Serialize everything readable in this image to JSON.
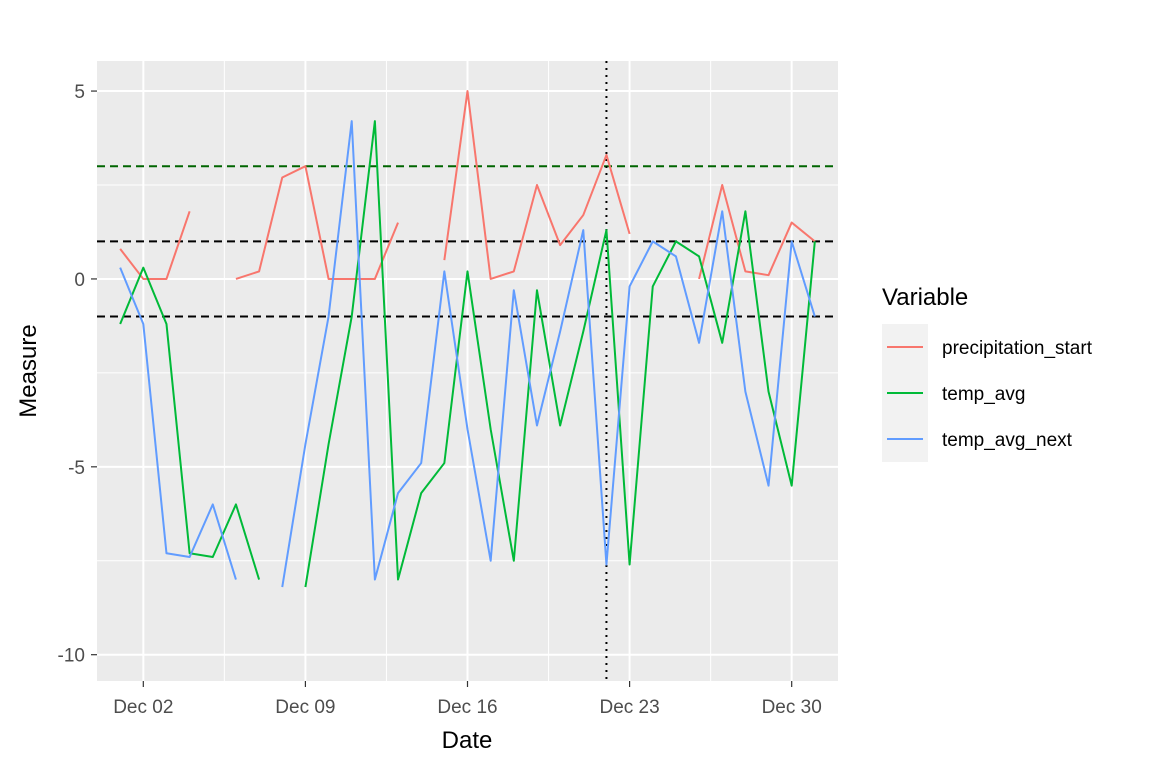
{
  "chart_data": {
    "type": "line",
    "title": "",
    "xlabel": "Date",
    "ylabel": "Measure",
    "xlim": [
      "2023-11-30",
      "2024-01-01"
    ],
    "ylim": [
      -10.7,
      5.8
    ],
    "x_ticks": [
      {
        "date": "2023-12-02",
        "label": "Dec 02"
      },
      {
        "date": "2023-12-09",
        "label": "Dec 09"
      },
      {
        "date": "2023-12-16",
        "label": "Dec 16"
      },
      {
        "date": "2023-12-23",
        "label": "Dec 23"
      },
      {
        "date": "2023-12-30",
        "label": "Dec 30"
      }
    ],
    "y_ticks": [
      {
        "value": 5,
        "label": "5"
      },
      {
        "value": 0,
        "label": "0"
      },
      {
        "value": -5,
        "label": "-5"
      },
      {
        "value": -10,
        "label": "-10"
      }
    ],
    "grid": true,
    "legend": {
      "title": "Variable",
      "position": "right"
    },
    "reference_lines": [
      {
        "orientation": "horizontal",
        "value": 3,
        "style": "dashed",
        "color": "#006400"
      },
      {
        "orientation": "horizontal",
        "value": 1,
        "style": "dashed",
        "color": "#000000"
      },
      {
        "orientation": "horizontal",
        "value": -1,
        "style": "dashed",
        "color": "#000000"
      },
      {
        "orientation": "vertical",
        "value": "2023-12-22",
        "style": "dotted",
        "color": "#000000"
      }
    ],
    "x": [
      "2023-12-01",
      "2023-12-02",
      "2023-12-03",
      "2023-12-04",
      "2023-12-05",
      "2023-12-06",
      "2023-12-07",
      "2023-12-08",
      "2023-12-09",
      "2023-12-10",
      "2023-12-11",
      "2023-12-12",
      "2023-12-13",
      "2023-12-14",
      "2023-12-15",
      "2023-12-16",
      "2023-12-17",
      "2023-12-18",
      "2023-12-19",
      "2023-12-20",
      "2023-12-21",
      "2023-12-22",
      "2023-12-23",
      "2023-12-24",
      "2023-12-25",
      "2023-12-26",
      "2023-12-27",
      "2023-12-28",
      "2023-12-29",
      "2023-12-30",
      "2023-12-31"
    ],
    "series": [
      {
        "name": "precipitation_start",
        "color": "#F8766D",
        "values": [
          0.8,
          0.0,
          0.0,
          1.8,
          null,
          0.0,
          0.2,
          2.7,
          3.0,
          0.0,
          0.0,
          0.0,
          1.5,
          null,
          0.5,
          5.0,
          0.0,
          0.2,
          2.5,
          0.9,
          1.7,
          3.3,
          1.2,
          null,
          null,
          0.0,
          2.5,
          0.2,
          0.1,
          1.5,
          1.0
        ]
      },
      {
        "name": "temp_avg",
        "color": "#00BA38",
        "values": [
          -1.2,
          0.3,
          -1.2,
          -7.3,
          -7.4,
          -6.0,
          -8.0,
          null,
          -8.2,
          -4.4,
          -1.0,
          4.2,
          -8.0,
          -5.7,
          -4.9,
          0.2,
          -4.0,
          -7.5,
          -0.3,
          -3.9,
          -1.4,
          1.3,
          -7.6,
          -0.2,
          1.0,
          0.6,
          -1.7,
          1.8,
          -3.0,
          -5.5,
          1.0
        ]
      },
      {
        "name": "temp_avg_next",
        "color": "#619CFF",
        "values": [
          0.3,
          -1.2,
          -7.3,
          -7.4,
          -6.0,
          -8.0,
          null,
          -8.2,
          -4.4,
          -1.0,
          4.2,
          -8.0,
          -5.7,
          -4.9,
          0.2,
          -4.0,
          -7.5,
          -0.3,
          -3.9,
          -1.4,
          1.3,
          -7.6,
          -0.2,
          1.0,
          0.6,
          -1.7,
          1.8,
          -3.0,
          -5.5,
          1.0,
          -1.0
        ]
      }
    ]
  }
}
